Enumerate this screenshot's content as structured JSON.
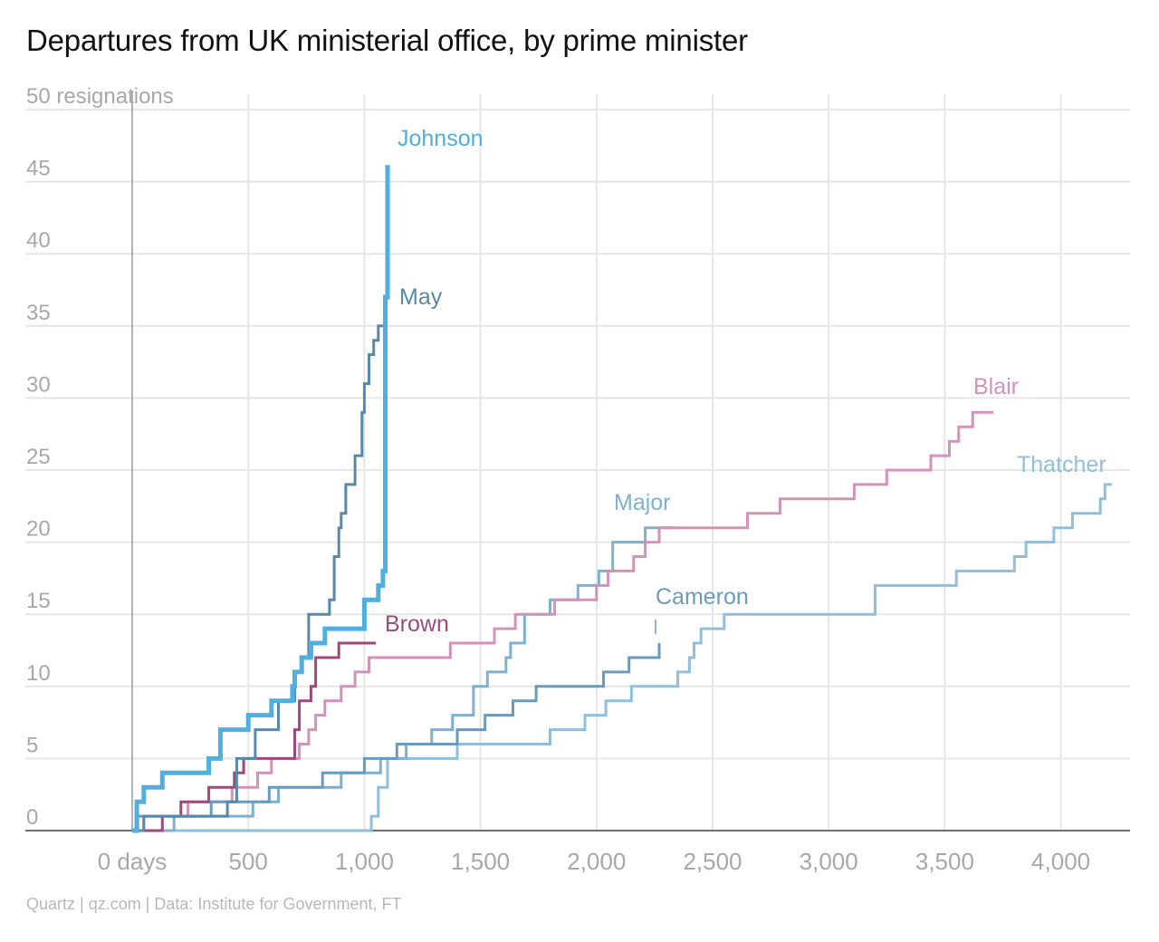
{
  "title": "Departures from UK ministerial office, by prime minister",
  "footer": "Quartz | qz.com | Data: Institute for Government, FT",
  "chart_data": {
    "type": "line",
    "step": true,
    "title": "Departures from UK ministerial office, by prime minister",
    "ylabel": "50 resignations",
    "xlim": [
      -450,
      4300
    ],
    "ylim": [
      0,
      50
    ],
    "grid": true,
    "legend": "direct labels at line ends",
    "xticks": [
      {
        "value": 0,
        "label": "0 days"
      },
      {
        "value": 500,
        "label": "500"
      },
      {
        "value": 1000,
        "label": "1,000"
      },
      {
        "value": 1500,
        "label": "1,500"
      },
      {
        "value": 2000,
        "label": "2,000"
      },
      {
        "value": 2500,
        "label": "2,500"
      },
      {
        "value": 3000,
        "label": "3,000"
      },
      {
        "value": 3500,
        "label": "3,500"
      },
      {
        "value": 4000,
        "label": "4,000"
      }
    ],
    "yticks": [
      {
        "value": 0,
        "label": "0"
      },
      {
        "value": 5,
        "label": "5"
      },
      {
        "value": 10,
        "label": "10"
      },
      {
        "value": 15,
        "label": "15"
      },
      {
        "value": 20,
        "label": "20"
      },
      {
        "value": 25,
        "label": "25"
      },
      {
        "value": 30,
        "label": "30"
      },
      {
        "value": 35,
        "label": "35"
      },
      {
        "value": 40,
        "label": "40"
      },
      {
        "value": 45,
        "label": "45"
      },
      {
        "value": 50,
        "label": "50 resignations"
      }
    ],
    "series": [
      {
        "name": "Thatcher",
        "color": "#8fbfdb",
        "width": 3,
        "x": [
          0,
          1000,
          1030,
          1060,
          1100,
          1400,
          1600,
          1800,
          1950,
          2040,
          2150,
          2350,
          2400,
          2420,
          2450,
          2550,
          3100,
          3200,
          3550,
          3800,
          3850,
          3970,
          4050,
          4130,
          4170,
          4190,
          4210,
          4220
        ],
        "y": [
          0,
          0,
          1,
          3,
          5,
          6,
          6,
          7,
          8,
          9,
          10,
          11,
          12,
          13,
          14,
          15,
          15,
          17,
          18,
          19,
          20,
          21,
          22,
          22,
          23,
          24,
          24,
          24
        ]
      },
      {
        "name": "Major",
        "color": "#7fb0d0",
        "width": 3,
        "x": [
          0,
          180,
          520,
          630,
          900,
          1070,
          1180,
          1290,
          1380,
          1470,
          1530,
          1610,
          1630,
          1690,
          1800,
          1920,
          2010,
          2070,
          2210,
          2350
        ],
        "y": [
          0,
          1,
          2,
          3,
          4,
          5,
          6,
          7,
          8,
          10,
          11,
          12,
          13,
          15,
          16,
          17,
          18,
          20,
          21,
          21
        ]
      },
      {
        "name": "Blair",
        "color": "#d392b8",
        "width": 3,
        "x": [
          0,
          50,
          240,
          430,
          540,
          600,
          720,
          760,
          790,
          830,
          900,
          960,
          1000,
          1020,
          1370,
          1560,
          1650,
          1820,
          2000,
          2050,
          2160,
          2210,
          2270,
          2500,
          2650,
          2790,
          3110,
          3250,
          3440,
          3520,
          3560,
          3620,
          3710
        ],
        "y": [
          0,
          1,
          2,
          3,
          4,
          5,
          6,
          7,
          8,
          9,
          10,
          11,
          11,
          12,
          13,
          14,
          15,
          16,
          17,
          18,
          19,
          20,
          21,
          21,
          22,
          23,
          24,
          25,
          26,
          27,
          28,
          29,
          29
        ]
      },
      {
        "name": "Brown",
        "color": "#9c4a7e",
        "width": 3,
        "x": [
          0,
          130,
          210,
          330,
          440,
          480,
          620,
          700,
          720,
          770,
          790,
          890,
          1050
        ],
        "y": [
          0,
          1,
          2,
          3,
          4,
          5,
          5,
          7,
          9,
          10,
          12,
          13,
          13
        ]
      },
      {
        "name": "Cameron",
        "color": "#6a9bbd",
        "width": 3,
        "x": [
          0,
          20,
          340,
          590,
          820,
          1000,
          1140,
          1400,
          1520,
          1640,
          1740,
          1830,
          2030,
          2140,
          2270
        ],
        "y": [
          0,
          1,
          2,
          3,
          4,
          5,
          6,
          7,
          8,
          9,
          10,
          10,
          11,
          12,
          13
        ]
      },
      {
        "name": "May",
        "color": "#5889a9",
        "width": 3,
        "x": [
          0,
          50,
          410,
          450,
          530,
          630,
          700,
          730,
          760,
          850,
          870,
          890,
          900,
          920,
          960,
          990,
          1000,
          1020,
          1040,
          1060,
          1080,
          1090,
          1100
        ],
        "y": [
          0,
          1,
          2,
          5,
          7,
          9,
          11,
          12,
          15,
          16,
          19,
          21,
          22,
          24,
          26,
          29,
          31,
          33,
          34,
          35,
          35,
          36,
          36
        ]
      },
      {
        "name": "Johnson",
        "color": "#4fafe0",
        "width": 5,
        "x": [
          0,
          20,
          50,
          130,
          330,
          380,
          500,
          600,
          690,
          700,
          730,
          770,
          830,
          1000,
          1060,
          1080,
          1090,
          1100,
          1110
        ],
        "y": [
          0,
          2,
          3,
          4,
          5,
          7,
          8,
          9,
          10,
          11,
          12,
          13,
          14,
          16,
          17,
          18,
          37,
          46,
          46
        ]
      }
    ],
    "labels": [
      {
        "series": "Johnson",
        "text": "Johnson"
      },
      {
        "series": "May",
        "text": "May"
      },
      {
        "series": "Brown",
        "text": "Brown"
      },
      {
        "series": "Cameron",
        "text": "Cameron"
      },
      {
        "series": "Major",
        "text": "Major"
      },
      {
        "series": "Blair",
        "text": "Blair"
      },
      {
        "series": "Thatcher",
        "text": "Thatcher"
      }
    ]
  }
}
